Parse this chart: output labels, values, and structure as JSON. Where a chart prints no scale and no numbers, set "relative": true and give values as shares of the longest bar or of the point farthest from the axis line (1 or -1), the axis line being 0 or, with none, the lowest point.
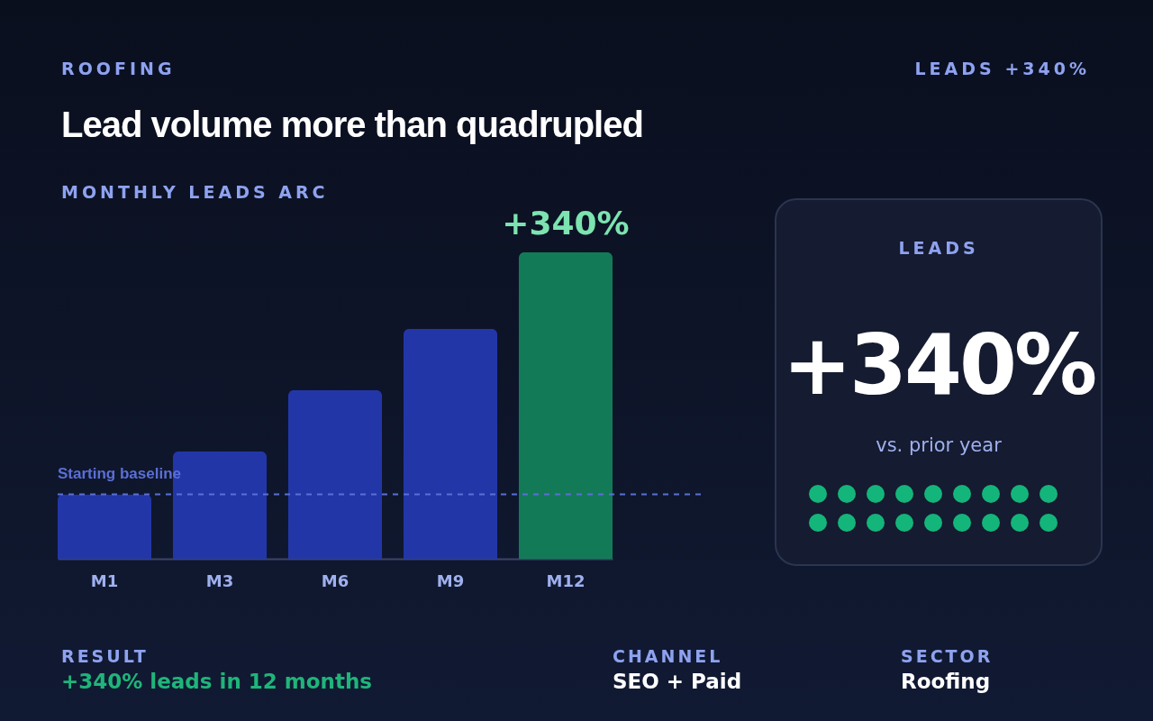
{
  "chart_data": [
    {
      "type": "bar",
      "title": "Lead volume more than quadrupled",
      "subtitle": "MONTHLY LEADS ARC",
      "relative": true,
      "categories": [
        "M1",
        "M3",
        "M6",
        "M9",
        "M12"
      ],
      "values": [
        0.21,
        0.35,
        0.55,
        0.75,
        1
      ],
      "colors": [
        "#2336a8",
        "#2336a8",
        "#2336a8",
        "#2336a8",
        "#137a58"
      ],
      "ref_lines": [
        {
          "axis": "y",
          "value": 0.21,
          "label": "Starting baseline",
          "color": "#5b6fd6",
          "line_style": "dashed"
        }
      ],
      "annotations": [
        "ROOFING",
        "LEADS +340%",
        {
          "text": "+340%",
          "x": "M12",
          "y": 1
        },
        "RESULT",
        "+340% leads in 12 months",
        "CHANNEL",
        "SEO + Paid",
        "SECTOR",
        "Roofing"
      ]
    },
    {
      "type": "other",
      "title": "LEADS",
      "annotations": [
        "+340%",
        "vs. prior year"
      ]
    }
  ]
}
